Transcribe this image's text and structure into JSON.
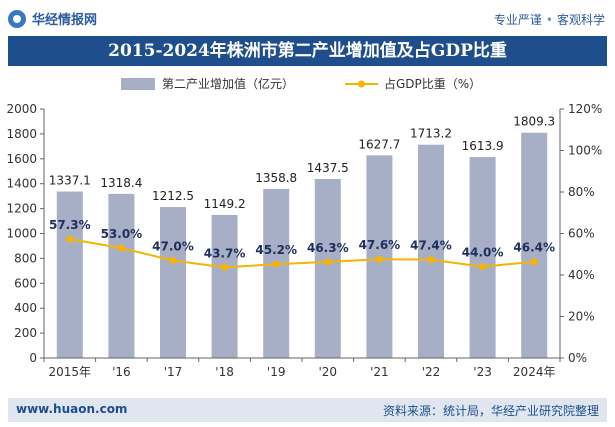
{
  "header": {
    "logo_name": "华经情报网",
    "tags": [
      "专业严谨",
      "客观科学"
    ]
  },
  "footer": {
    "website": "www.huaon.com",
    "source": "资料来源：统计局，华经产业研究院整理"
  },
  "colors": {
    "bar": "#a6afc6",
    "line": "#f4b400",
    "title_bg": "#1f4e8c",
    "footer_bg": "#dfe6f0"
  },
  "chart_data": {
    "type": "bar",
    "title": "2015-2024年株洲市第二产业增加值及占GDP比重",
    "categories": [
      "2015年",
      "'16",
      "'17",
      "'18",
      "'19",
      "'20",
      "'21",
      "'22",
      "'23",
      "2024年"
    ],
    "series": [
      {
        "name": "第二产业增加值（亿元）",
        "type": "bar",
        "axis": "left",
        "values": [
          1337.1,
          1318.4,
          1212.5,
          1149.2,
          1358.8,
          1437.5,
          1627.7,
          1713.2,
          1613.9,
          1809.3
        ],
        "labels": [
          "1337.1",
          "1318.4",
          "1212.5",
          "1149.2",
          "1358.8",
          "1437.5",
          "1627.7",
          "1713.2",
          "1613.9",
          "1809.3"
        ]
      },
      {
        "name": "占GDP比重（%）",
        "type": "line",
        "axis": "right",
        "values": [
          57.3,
          53.0,
          47.0,
          43.7,
          45.2,
          46.3,
          47.6,
          47.4,
          44.0,
          46.4
        ],
        "labels": [
          "57.3%",
          "53.0%",
          "47.0%",
          "43.7%",
          "45.2%",
          "46.3%",
          "47.6%",
          "47.4%",
          "44.0%",
          "46.4%"
        ]
      }
    ],
    "y_left": {
      "min": 0,
      "max": 2000,
      "ticks": [
        "0",
        "200",
        "400",
        "600",
        "800",
        "1000",
        "1200",
        "1400",
        "1600",
        "1800",
        "2000"
      ]
    },
    "y_right": {
      "min": 0,
      "max": 120,
      "ticks": [
        "0%",
        "20%",
        "40%",
        "60%",
        "80%",
        "100%",
        "120%"
      ]
    },
    "legend": "top-center",
    "grid": false
  }
}
